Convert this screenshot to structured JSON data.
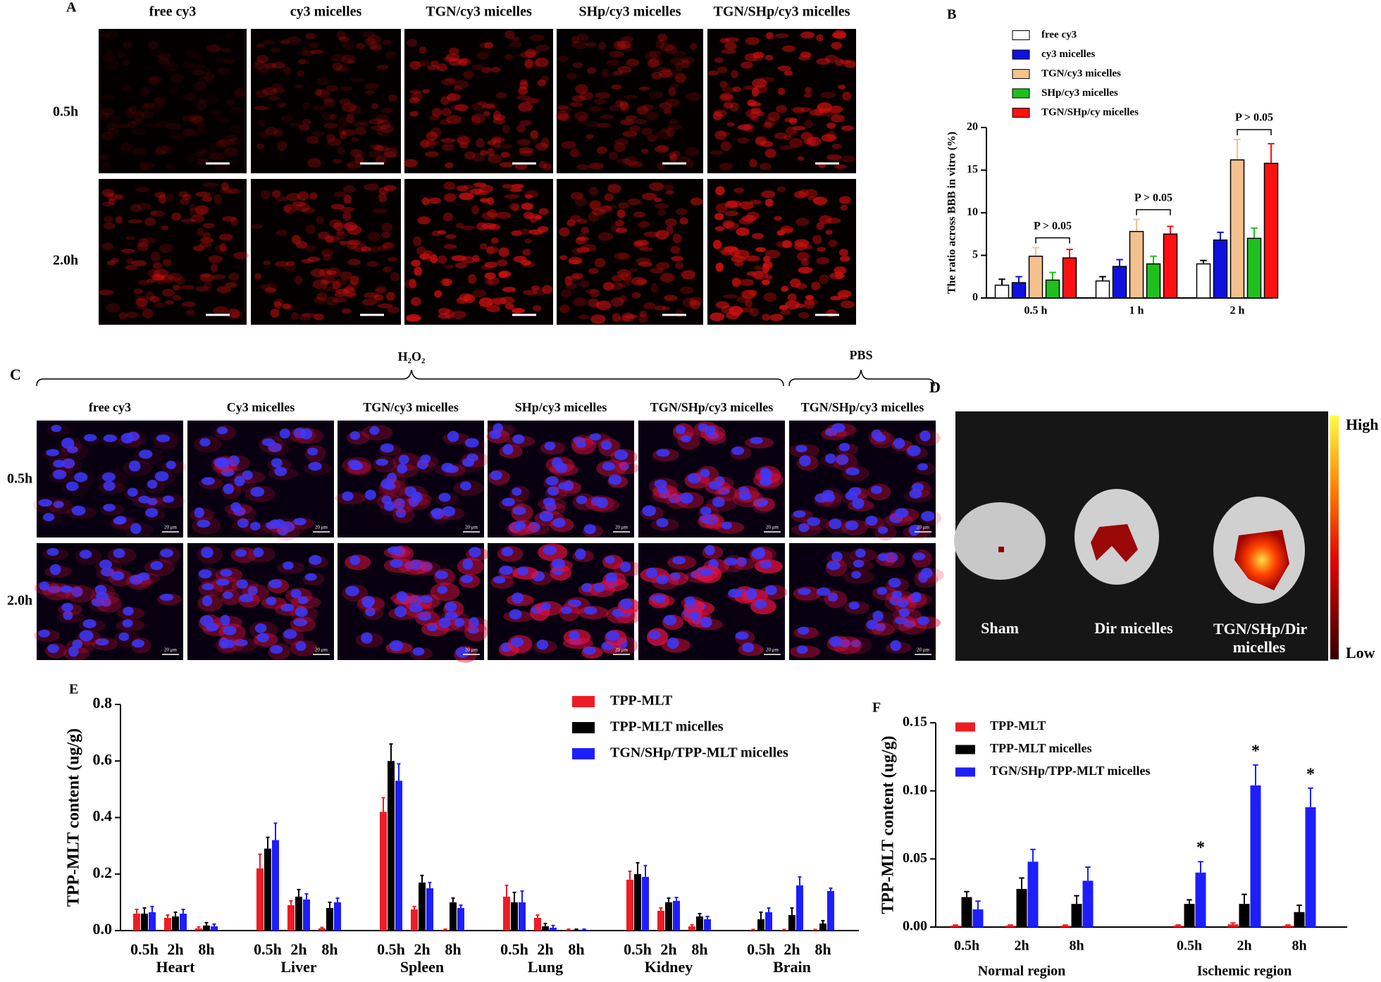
{
  "panel_A": {
    "label": "A",
    "columns": [
      "free cy3",
      "cy3 micelles",
      "TGN/cy3 micelles",
      "SHp/cy3 micelles",
      "TGN/SHp/cy3 micelles"
    ],
    "rows": [
      "0.5h",
      "2.0h"
    ]
  },
  "panel_C": {
    "label": "C",
    "brackets": [
      "H₂O₂",
      "PBS"
    ],
    "columns": [
      "free cy3",
      "Cy3 micelles",
      "TGN/cy3 micelles",
      "SHp/cy3 micelles",
      "TGN/SHp/cy3 micelles",
      "TGN/SHp/cy3 micelles"
    ],
    "rows": [
      "0.5h",
      "2.0h"
    ],
    "scale_bar": "20 μm"
  },
  "panel_D": {
    "label": "D",
    "samples": [
      "Sham",
      "Dir micelles",
      "TGN/SHp/Dir micelles"
    ],
    "colorbar": [
      "High",
      "Low"
    ]
  },
  "chart_data": [
    {
      "type": "bar",
      "label": "B",
      "ylabel": "The ratio across BBB in vitro (%)",
      "categories": [
        "0.5 h",
        "1 h",
        "2 h"
      ],
      "series": [
        {
          "name": "free cy3",
          "color": "#ffffff",
          "values": [
            1.5,
            2.0,
            4.0
          ],
          "errors": [
            0.7,
            0.5,
            0.4
          ]
        },
        {
          "name": "cy3 micelles",
          "color": "#1010e0",
          "values": [
            1.8,
            3.7,
            6.8
          ],
          "errors": [
            0.7,
            0.8,
            0.9
          ]
        },
        {
          "name": "TGN/cy3 micelles",
          "color": "#f4c18e",
          "values": [
            4.9,
            7.8,
            16.2
          ],
          "errors": [
            1.0,
            1.4,
            2.4
          ]
        },
        {
          "name": "SHp/cy3 micelles",
          "color": "#1ec01e",
          "values": [
            2.1,
            4.0,
            7.0
          ],
          "errors": [
            0.9,
            0.9,
            1.2
          ]
        },
        {
          "name": "TGN/SHp/cy micelles",
          "color": "#ff1010",
          "values": [
            4.7,
            7.5,
            15.8
          ],
          "errors": [
            1.0,
            0.9,
            2.3
          ]
        }
      ],
      "ylim": [
        0,
        20
      ],
      "yticks": [
        0,
        5,
        10,
        15,
        20
      ],
      "annotations": [
        "P > 0.05",
        "P > 0.05",
        "P > 0.05"
      ]
    },
    {
      "type": "bar",
      "label": "E",
      "ylabel": "TPP-MLT content (ug/g)",
      "categories": [
        "0.5h",
        "2h",
        "8h",
        "0.5h",
        "2h",
        "8h",
        "0.5h",
        "2h",
        "8h",
        "0.5h",
        "2h",
        "8h",
        "0.5h",
        "2h",
        "8h",
        "0.5h",
        "2h",
        "8h"
      ],
      "groups": [
        "Heart",
        "Liver",
        "Spleen",
        "Lung",
        "Kidney",
        "Brain"
      ],
      "series": [
        {
          "name": "TPP-MLT",
          "color": "#ee1c25",
          "values": [
            0.06,
            0.045,
            0.008,
            0.22,
            0.09,
            0.008,
            0.42,
            0.075,
            0.003,
            0.12,
            0.045,
            0.003,
            0.18,
            0.07,
            0.015,
            0.002,
            0.002,
            0.002
          ],
          "errors": [
            0.015,
            0.01,
            0.005,
            0.05,
            0.015,
            0.003,
            0.05,
            0.01,
            0.002,
            0.04,
            0.01,
            0.002,
            0.03,
            0.01,
            0.005,
            0.002,
            0.002,
            0.002
          ]
        },
        {
          "name": "TPP-MLT micelles",
          "color": "#000000",
          "values": [
            0.06,
            0.05,
            0.018,
            0.29,
            0.12,
            0.08,
            0.6,
            0.17,
            0.1,
            0.1,
            0.015,
            0.003,
            0.2,
            0.1,
            0.05,
            0.04,
            0.055,
            0.025
          ],
          "errors": [
            0.02,
            0.015,
            0.01,
            0.04,
            0.025,
            0.02,
            0.06,
            0.025,
            0.015,
            0.035,
            0.01,
            0.002,
            0.04,
            0.015,
            0.01,
            0.025,
            0.025,
            0.01
          ]
        },
        {
          "name": "TGN/SHp/TPP-MLT micelles",
          "color": "#1e1efa",
          "values": [
            0.065,
            0.06,
            0.015,
            0.32,
            0.11,
            0.1,
            0.53,
            0.15,
            0.08,
            0.1,
            0.01,
            0.003,
            0.19,
            0.105,
            0.04,
            0.065,
            0.16,
            0.14
          ],
          "errors": [
            0.02,
            0.015,
            0.008,
            0.06,
            0.02,
            0.015,
            0.06,
            0.02,
            0.01,
            0.04,
            0.008,
            0.002,
            0.04,
            0.012,
            0.01,
            0.015,
            0.03,
            0.01
          ]
        }
      ],
      "ylim": [
        0,
        0.8
      ],
      "yticks": [
        {
          "value": 0,
          "label": "0.0"
        },
        0.2,
        0.4,
        0.6,
        0.8
      ]
    },
    {
      "type": "bar",
      "label": "F",
      "ylabel": "TPP-MLT content (ug/g)",
      "categories": [
        "0.5h",
        "2h",
        "8h",
        "0.5h",
        "2h",
        "8h"
      ],
      "groups": [
        "Normal region",
        "Ischemic region"
      ],
      "series": [
        {
          "name": "TPP-MLT",
          "color": "#ee1c25",
          "values": [
            0.001,
            0.001,
            0.001,
            0.001,
            0.002,
            0.001
          ],
          "errors": [
            0.0005,
            0.0005,
            0.0005,
            0.0005,
            0.001,
            0.0005
          ]
        },
        {
          "name": "TPP-MLT micelles",
          "color": "#000000",
          "values": [
            0.022,
            0.028,
            0.017,
            0.017,
            0.017,
            0.011
          ],
          "errors": [
            0.004,
            0.008,
            0.006,
            0.003,
            0.007,
            0.005
          ]
        },
        {
          "name": "TGN/SHp/TPP-MLT micelles",
          "color": "#1e1efa",
          "values": [
            0.013,
            0.048,
            0.034,
            0.04,
            0.104,
            0.088
          ],
          "errors": [
            0.006,
            0.009,
            0.01,
            0.008,
            0.015,
            0.014
          ]
        }
      ],
      "ylim": [
        0,
        0.15
      ],
      "yticks": [
        {
          "value": 0,
          "label": "0.00"
        },
        0.05,
        {
          "value": 0.1,
          "label": "0.10"
        },
        0.15
      ],
      "annotations": [
        "*",
        "*",
        "*"
      ]
    }
  ]
}
